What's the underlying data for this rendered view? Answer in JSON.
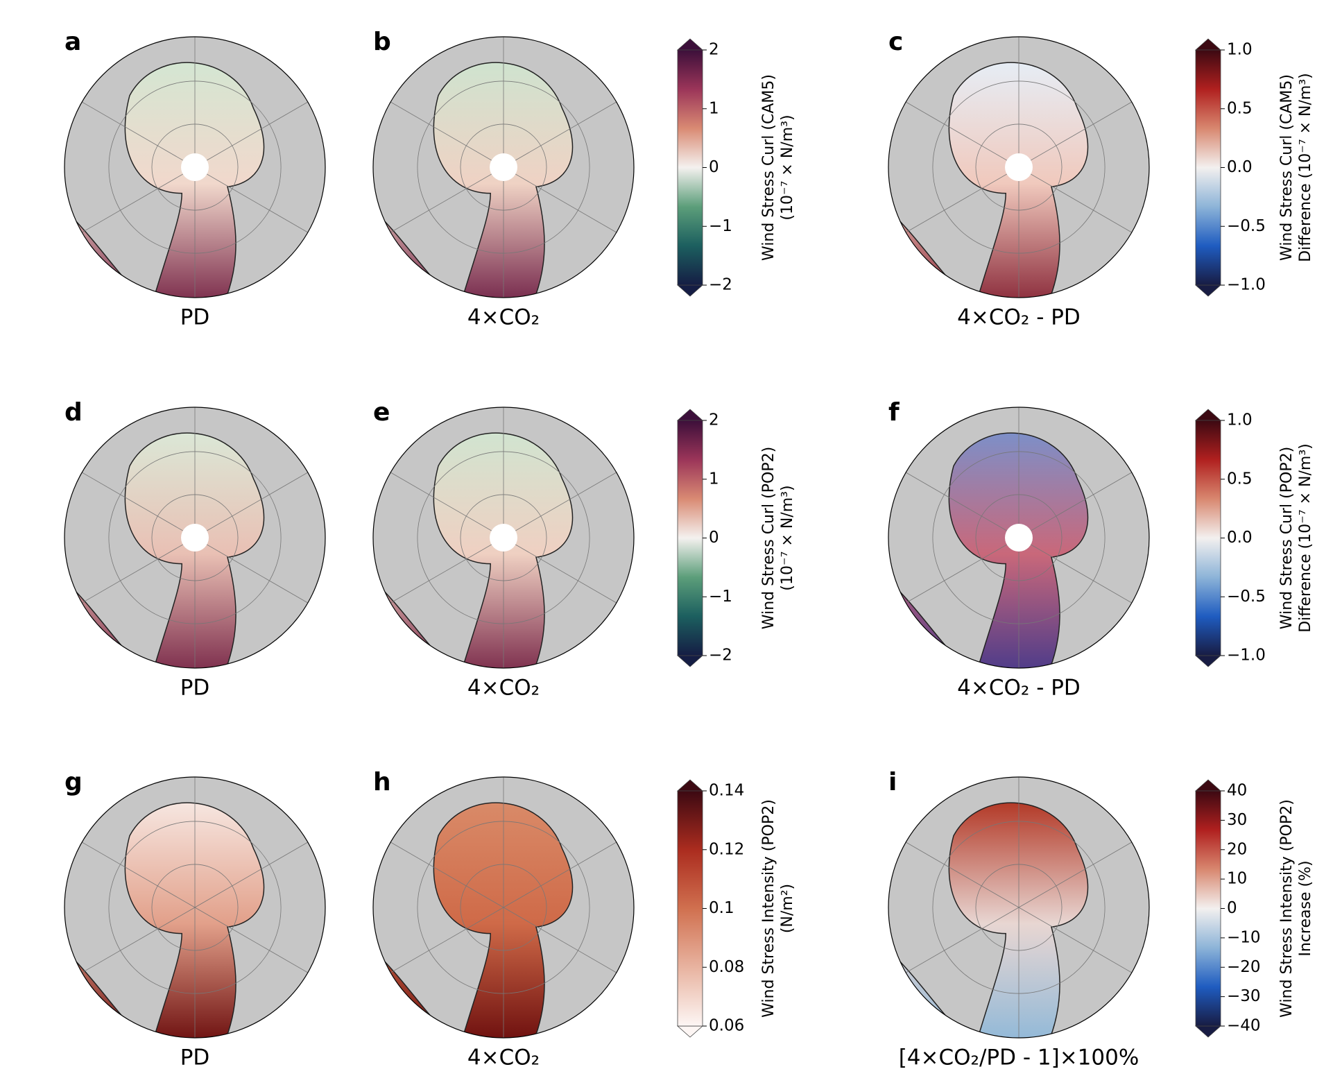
{
  "panels": [
    {
      "letter": "a",
      "caption": "PD"
    },
    {
      "letter": "b",
      "caption": "4×CO₂"
    },
    {
      "letter": "c",
      "caption": "4×CO₂ - PD"
    },
    {
      "letter": "d",
      "caption": "PD"
    },
    {
      "letter": "e",
      "caption": "4×CO₂"
    },
    {
      "letter": "f",
      "caption": "4×CO₂ - PD"
    },
    {
      "letter": "g",
      "caption": "PD"
    },
    {
      "letter": "h",
      "caption": "4×CO₂"
    },
    {
      "letter": "i",
      "caption": "[4×CO₂/PD - 1]×100%"
    }
  ],
  "colorbars": [
    {
      "label": [
        "Wind Stress Curl (CAM5)",
        "(10⁻⁷ × N/m³)"
      ],
      "lim": [
        -2,
        2
      ],
      "ticks": [
        {
          "value": -2,
          "label": "−2"
        },
        {
          "value": -1,
          "label": "−1"
        },
        0,
        1,
        2
      ],
      "colors": [
        "#151d44",
        "#1c5f5f",
        "#5c9e7a",
        "#f4f1ef",
        "#d98a73",
        "#9b3559",
        "#3c0f3a"
      ]
    },
    {
      "label": [
        "Wind Stress Curl (CAM5)",
        "Difference (10⁻⁷ × N/m³)"
      ],
      "lim": [
        -1,
        1
      ],
      "ticks": [
        {
          "value": -1,
          "label": "−1.0"
        },
        {
          "value": -0.5,
          "label": "−0.5"
        },
        {
          "value": 0,
          "label": "0.0"
        },
        0.5,
        {
          "value": 1,
          "label": "1.0"
        }
      ],
      "colors": [
        "#181c43",
        "#1f5cc0",
        "#8db4d8",
        "#f3f0ef",
        "#d8876f",
        "#b0201f",
        "#3c0912"
      ]
    },
    {
      "label": [
        "Wind Stress Curl (POP2)",
        "(10⁻⁷ × N/m³)"
      ],
      "lim": [
        -2,
        2
      ],
      "ticks": [
        {
          "value": -2,
          "label": "−2"
        },
        {
          "value": -1,
          "label": "−1"
        },
        0,
        1,
        2
      ],
      "colors": [
        "#151d44",
        "#1c5f5f",
        "#5c9e7a",
        "#f4f1ef",
        "#d98a73",
        "#9b3559",
        "#3c0f3a"
      ]
    },
    {
      "label": [
        "Wind Stress Curl (POP2)",
        "Difference (10⁻⁷ × N/m³)"
      ],
      "lim": [
        -1,
        1
      ],
      "ticks": [
        {
          "value": -1,
          "label": "−1.0"
        },
        {
          "value": -0.5,
          "label": "−0.5"
        },
        {
          "value": 0,
          "label": "0.0"
        },
        0.5,
        {
          "value": 1,
          "label": "1.0"
        }
      ],
      "colors": [
        "#181c43",
        "#1f5cc0",
        "#8db4d8",
        "#f3f0ef",
        "#d8876f",
        "#b0201f",
        "#3c0912"
      ]
    },
    {
      "label": [
        "Wind Stress Intensity (POP2)",
        "(N/m²)"
      ],
      "lim": [
        0.06,
        0.14
      ],
      "ticks": [
        0.06,
        0.08,
        0.1,
        0.12,
        0.14
      ],
      "colors": [
        "#fdf6f4",
        "#e8b3a0",
        "#d0704f",
        "#ab2c1f",
        "#3c0912"
      ]
    },
    {
      "label": [
        "Wind Stress Intensity (POP2)",
        "Increase (%)"
      ],
      "lim": [
        -40,
        40
      ],
      "ticks": [
        {
          "value": -40,
          "label": "−40"
        },
        {
          "value": -30,
          "label": "−30"
        },
        {
          "value": -20,
          "label": "−20"
        },
        {
          "value": -10,
          "label": "−10"
        },
        0,
        10,
        20,
        30,
        40
      ],
      "colors": [
        "#181c43",
        "#1f5cc0",
        "#8db4d8",
        "#f3f0ef",
        "#d8876f",
        "#b0201f",
        "#3c0912"
      ]
    }
  ]
}
